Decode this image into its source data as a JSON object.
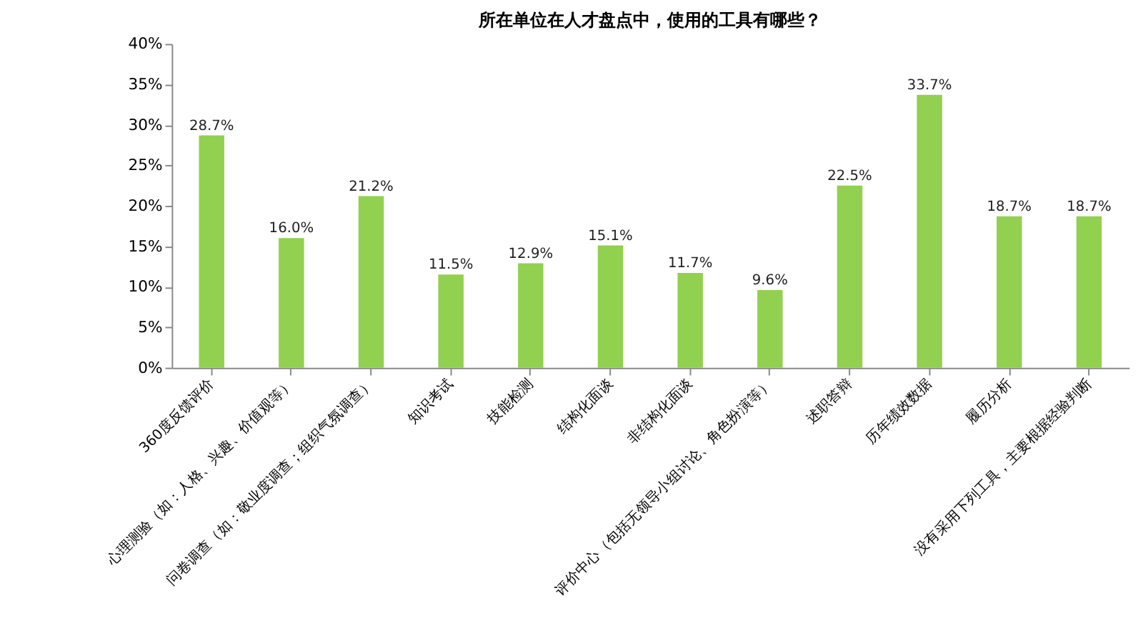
{
  "chart_data": {
    "type": "bar",
    "title": "所在单位在人才盘点中，使用的工具有哪些？",
    "categories": [
      "360度反馈评价",
      "心理测验（如：人格、兴趣、价值观等）",
      "问卷调查（如：敬业度调查；组织气氛调查）",
      "知识考试",
      "技能检测",
      "结构化面谈",
      "非结构化面谈",
      "评价中心（包括无领导小组讨论、角色扮演等）",
      "述职答辩",
      "历年绩效数据",
      "履历分析",
      "没有采用下列工具，主要根据经验判断"
    ],
    "values": [
      28.7,
      16.0,
      21.2,
      11.5,
      12.9,
      15.1,
      11.7,
      9.6,
      22.5,
      33.7,
      18.7,
      18.7
    ],
    "value_labels": [
      "28.7%",
      "16.0%",
      "21.2%",
      "11.5%",
      "12.9%",
      "15.1%",
      "11.7%",
      "9.6%",
      "22.5%",
      "33.7%",
      "18.7%",
      "18.7%"
    ],
    "color": "#92d050",
    "ylim": [
      0,
      40
    ],
    "yticks": [
      {
        "value": 0,
        "label": "0%"
      },
      {
        "value": 5,
        "label": "5%"
      },
      {
        "value": 10,
        "label": "10%"
      },
      {
        "value": 15,
        "label": "15%"
      },
      {
        "value": 20,
        "label": "20%"
      },
      {
        "value": 25,
        "label": "25%"
      },
      {
        "value": 30,
        "label": "30%"
      },
      {
        "value": 35,
        "label": "35%"
      },
      {
        "value": 40,
        "label": "40%"
      }
    ],
    "grid": false
  }
}
